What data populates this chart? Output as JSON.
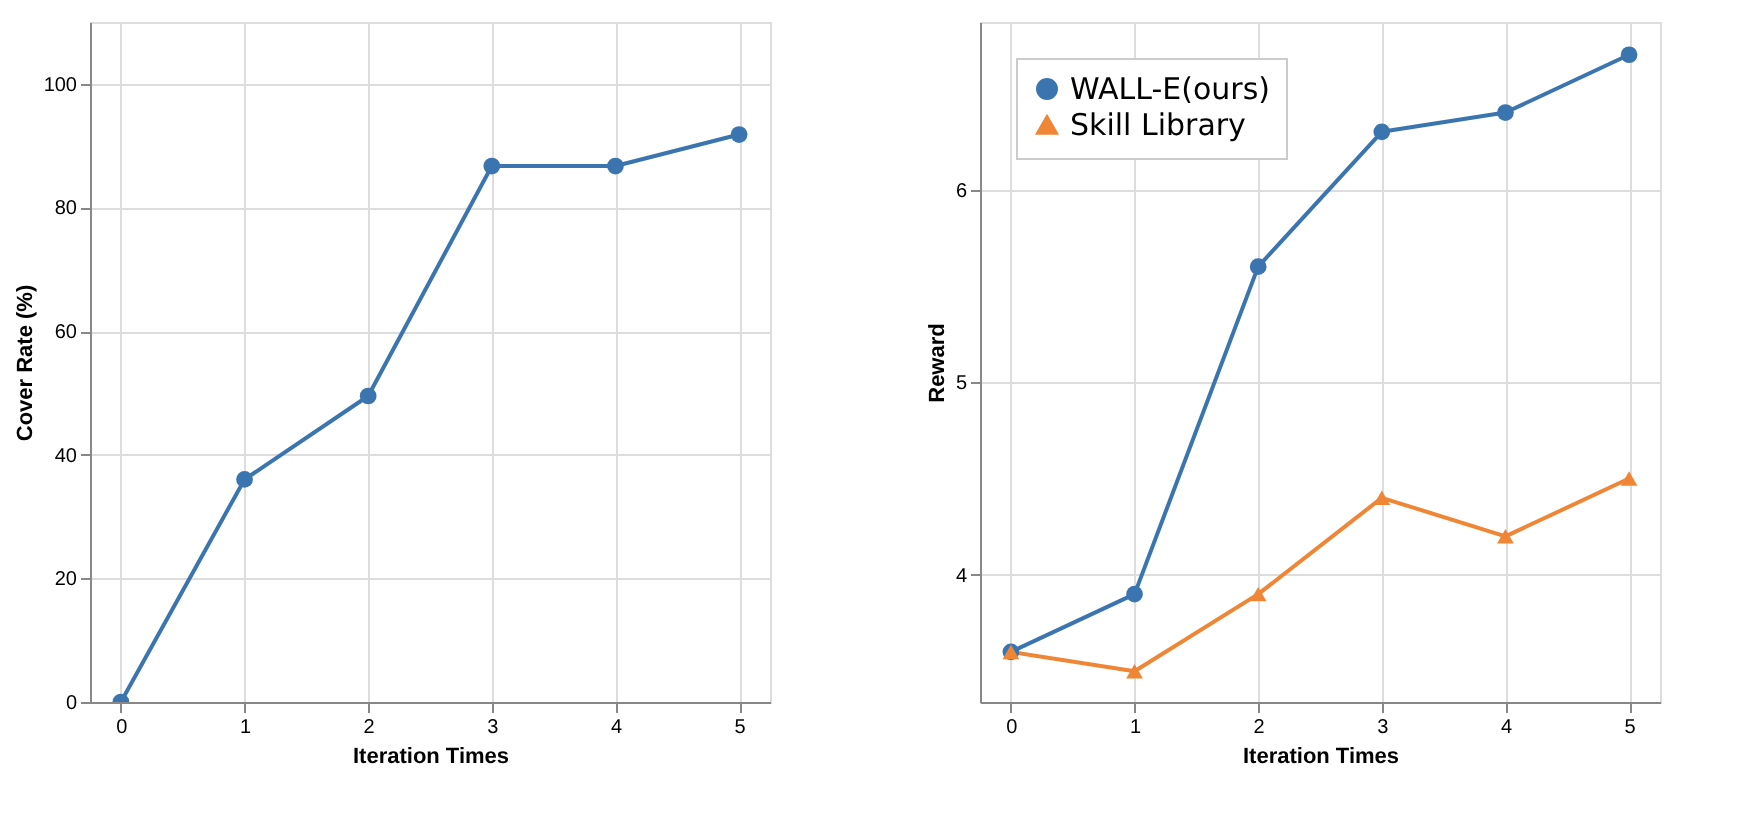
{
  "chart_data": [
    {
      "type": "line",
      "xlabel": "Iteration Times",
      "ylabel": "Cover Rate (%)",
      "x": [
        0,
        1,
        2,
        3,
        4,
        5
      ],
      "xlim": [
        -0.25,
        5.25
      ],
      "xticks": [
        0,
        1,
        2,
        3,
        4,
        5
      ],
      "ylim": [
        0,
        110
      ],
      "yticks": [
        0,
        20,
        40,
        60,
        80,
        100
      ],
      "grid": true,
      "marker": "circle",
      "legend": false,
      "series": [
        {
          "color": "#3b75af",
          "values": [
            0,
            36,
            49.5,
            86.7,
            86.7,
            91.8
          ]
        }
      ]
    },
    {
      "type": "line",
      "xlabel": "Iteration Times",
      "ylabel": "Reward",
      "x": [
        0,
        1,
        2,
        3,
        4,
        5
      ],
      "xlim": [
        -0.25,
        5.25
      ],
      "xticks": [
        0,
        1,
        2,
        3,
        4,
        5
      ],
      "ylim": [
        3.34,
        6.87
      ],
      "yticks": [
        {
          "value": 4,
          "label": "4"
        },
        {
          "value": 5,
          "label": "5"
        },
        {
          "value": 6,
          "label": "6"
        }
      ],
      "grid": true,
      "legend": "top left",
      "series": [
        {
          "name": "WALL-E(ours)",
          "color": "#3b75af",
          "marker": "circle",
          "values": [
            3.6,
            3.9,
            5.6,
            6.3,
            6.4,
            6.7
          ]
        },
        {
          "name": "Skill Library",
          "color": "#ef8636",
          "marker": "triangle",
          "values": [
            3.6,
            3.5,
            3.9,
            4.4,
            4.2,
            4.5
          ]
        }
      ]
    }
  ]
}
